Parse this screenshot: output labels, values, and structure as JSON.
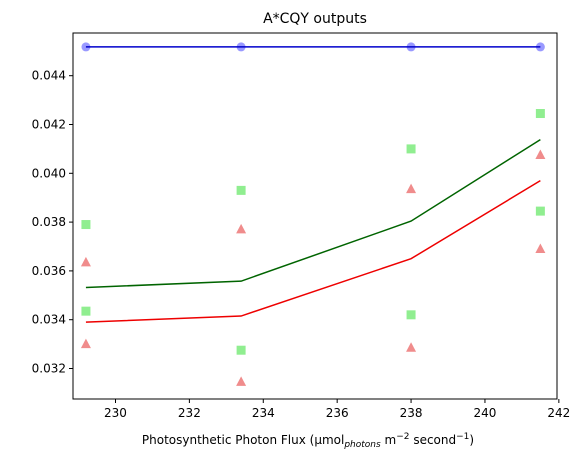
{
  "chart_data": {
    "type": "scatter",
    "title": "A*CQY outputs",
    "xlabel_main": "Photosynthetic Photon Flux (µmol",
    "xlabel_sub": "photons",
    "xlabel_mid": " m",
    "xlabel_sup1": "−2",
    "xlabel_mid2": " second",
    "xlabel_sup2": "−1",
    "xlabel_end": ")",
    "ylabel": "",
    "xlim": [
      228.85,
      241.95
    ],
    "ylim": [
      0.03075,
      0.04575
    ],
    "xticks": [
      230,
      232,
      234,
      236,
      238,
      240,
      242
    ],
    "yticks": [
      0.032,
      0.034,
      0.036,
      0.038,
      0.04,
      0.042,
      0.044
    ],
    "xtick_labels": [
      "230",
      "232",
      "234",
      "236",
      "238",
      "240",
      "242"
    ],
    "ytick_labels": [
      "0.032",
      "0.034",
      "0.036",
      "0.038",
      "0.040",
      "0.042",
      "0.044"
    ],
    "series": [
      {
        "kind": "scatter",
        "marker": "circle",
        "color": "#9999ff",
        "x": [
          229.2,
          233.4,
          238.0,
          241.5
        ],
        "y": [
          0.04518,
          0.04518,
          0.04518,
          0.04518
        ]
      },
      {
        "kind": "line",
        "color": "#0000cc",
        "x": [
          229.2,
          233.4,
          238.0,
          241.5
        ],
        "y": [
          0.04518,
          0.04518,
          0.04518,
          0.04518
        ]
      },
      {
        "kind": "scatter",
        "marker": "square",
        "color": "#90ee90",
        "x": [
          229.2,
          229.2,
          233.4,
          233.4,
          238.0,
          238.0,
          241.5,
          241.5
        ],
        "y": [
          0.0379,
          0.03435,
          0.0393,
          0.03275,
          0.041,
          0.0342,
          0.04245,
          0.03845
        ]
      },
      {
        "kind": "scatter",
        "marker": "triangle",
        "color": "#f08c8c",
        "x": [
          229.2,
          229.2,
          233.4,
          233.4,
          238.0,
          238.0,
          241.5,
          241.5
        ],
        "y": [
          0.03635,
          0.033,
          0.0377,
          0.03145,
          0.03935,
          0.03285,
          0.04075,
          0.0369
        ]
      },
      {
        "kind": "line",
        "color": "#006400",
        "x": [
          229.2,
          233.4,
          238.0,
          241.5
        ],
        "y": [
          0.03532,
          0.03558,
          0.03804,
          0.04138
        ]
      },
      {
        "kind": "line",
        "color": "#ee0000",
        "x": [
          229.2,
          233.4,
          238.0,
          241.5
        ],
        "y": [
          0.0339,
          0.03415,
          0.0365,
          0.0397
        ]
      }
    ]
  }
}
